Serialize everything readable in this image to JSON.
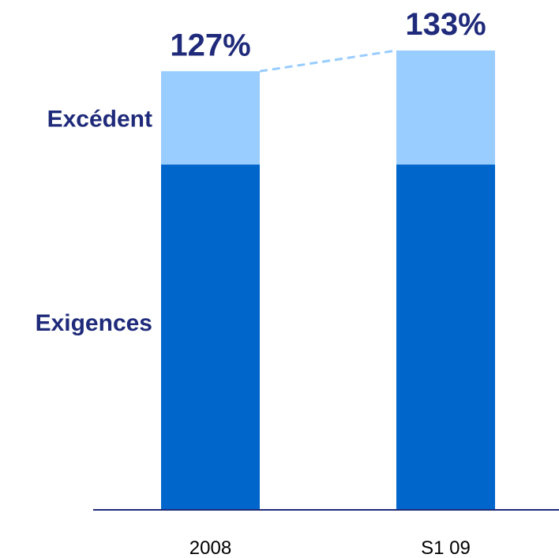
{
  "chart_data": {
    "type": "bar",
    "stacked": true,
    "categories": [
      "2008",
      "S1 09"
    ],
    "series": [
      {
        "name": "Exigences",
        "values": [
          100,
          100
        ]
      },
      {
        "name": "Excédent",
        "values": [
          27,
          33
        ]
      }
    ],
    "totals": [
      127,
      133
    ],
    "total_labels": [
      "127%",
      "133%"
    ],
    "ylim": [
      0,
      133
    ],
    "grid": false,
    "connector_line": "dashed",
    "colors": {
      "Exigences": "#0066CC",
      "Excédent": "#99CCFF",
      "text": "#1F2A7A",
      "axis": "#1F2A7A",
      "connector": "#99CCFF",
      "tick": "#000000"
    }
  }
}
